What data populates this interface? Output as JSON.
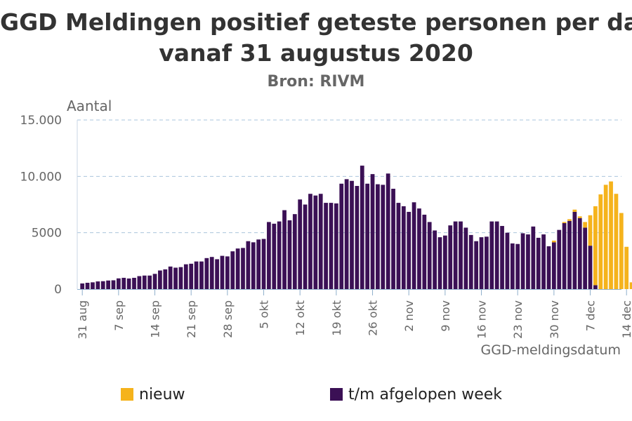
{
  "chart_data": {
    "type": "bar",
    "stacked": true,
    "title_line1": "GGD Meldingen positief geteste personen per dag",
    "title_line2": "vanaf 31 augustus 2020",
    "subtitle": "Bron: RIVM",
    "ylabel": "Aantal",
    "xlabel": "GGD-meldingsdatum",
    "ylim": [
      0,
      15000
    ],
    "yticks": [
      0,
      5000,
      10000,
      15000
    ],
    "ytick_labels": [
      "0",
      "5000",
      "10.000",
      "15.000"
    ],
    "grid": true,
    "legend_position": "bottom",
    "x_ticks": [
      {
        "day": 0,
        "label": "31 aug"
      },
      {
        "day": 7,
        "label": "7 sep"
      },
      {
        "day": 14,
        "label": "14 sep"
      },
      {
        "day": 21,
        "label": "21 sep"
      },
      {
        "day": 28,
        "label": "28 sep"
      },
      {
        "day": 35,
        "label": "5 okt"
      },
      {
        "day": 42,
        "label": "12 okt"
      },
      {
        "day": 49,
        "label": "19 okt"
      },
      {
        "day": 56,
        "label": "26 okt"
      },
      {
        "day": 63,
        "label": "2 nov"
      },
      {
        "day": 70,
        "label": "9 nov"
      },
      {
        "day": 77,
        "label": "16 nov"
      },
      {
        "day": 84,
        "label": "23 nov"
      },
      {
        "day": 91,
        "label": "30 nov"
      },
      {
        "day": 98,
        "label": "7 dec"
      },
      {
        "day": 105,
        "label": "14 dec"
      }
    ],
    "series": [
      {
        "name": "t/m afgelopen week",
        "color": "#3b1055",
        "values": [
          500,
          560,
          600,
          680,
          700,
          760,
          780,
          950,
          1000,
          940,
          1000,
          1150,
          1200,
          1200,
          1350,
          1650,
          1750,
          2000,
          1900,
          1950,
          2200,
          2250,
          2450,
          2450,
          2750,
          2850,
          2650,
          2950,
          2900,
          3350,
          3600,
          3650,
          4250,
          4150,
          4400,
          4450,
          5950,
          5800,
          6000,
          7000,
          6100,
          6650,
          7950,
          7500,
          8450,
          8300,
          8450,
          7650,
          7650,
          7600,
          9350,
          9750,
          9600,
          9150,
          10950,
          9350,
          10200,
          9300,
          9250,
          10250,
          8900,
          7650,
          7350,
          6850,
          7700,
          7150,
          6600,
          5950,
          5200,
          4600,
          4750,
          5650,
          6000,
          6000,
          5450,
          4800,
          4250,
          4600,
          4650,
          6000,
          6000,
          5600,
          5000,
          4050,
          4000,
          4950,
          4850,
          5550,
          4550,
          4850,
          3800,
          4150,
          5250,
          5850,
          6050,
          6850,
          6300,
          5450,
          3850,
          350,
          0,
          0,
          0,
          0,
          0,
          0,
          0
        ]
      },
      {
        "name": "nieuw",
        "color": "#f5b31c",
        "values": [
          0,
          0,
          0,
          0,
          0,
          0,
          0,
          0,
          0,
          0,
          0,
          0,
          0,
          0,
          0,
          0,
          0,
          0,
          0,
          0,
          0,
          0,
          0,
          0,
          0,
          0,
          0,
          0,
          0,
          0,
          0,
          0,
          0,
          0,
          0,
          0,
          0,
          0,
          0,
          0,
          0,
          0,
          0,
          0,
          0,
          0,
          0,
          0,
          0,
          0,
          0,
          0,
          0,
          0,
          0,
          0,
          0,
          0,
          0,
          0,
          0,
          0,
          0,
          0,
          0,
          0,
          0,
          0,
          0,
          0,
          0,
          0,
          0,
          0,
          0,
          0,
          0,
          0,
          0,
          0,
          0,
          0,
          0,
          0,
          0,
          0,
          0,
          0,
          0,
          0,
          0,
          150,
          0,
          100,
          150,
          200,
          150,
          500,
          2700,
          7000,
          8400,
          9250,
          9550,
          8450,
          6750,
          3750,
          600
        ]
      }
    ],
    "legend": [
      {
        "label": "nieuw",
        "color": "#f5b31c"
      },
      {
        "label": "t/m afgelopen week",
        "color": "#3b1055"
      }
    ]
  }
}
